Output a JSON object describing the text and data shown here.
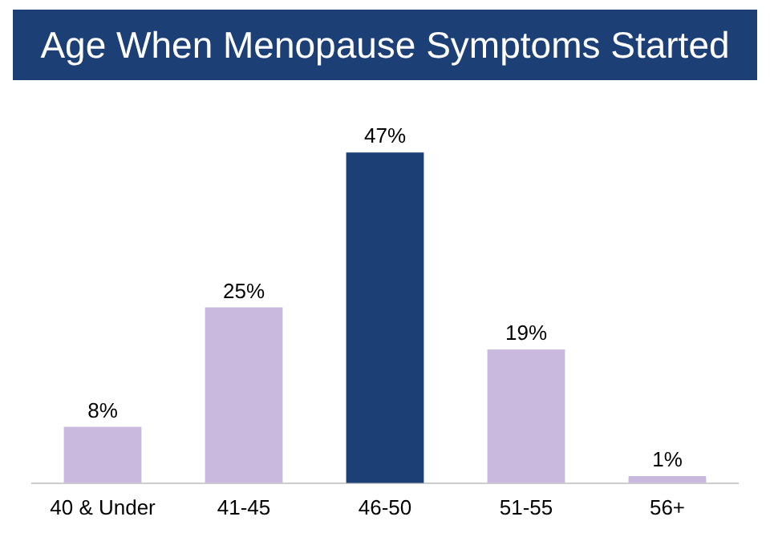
{
  "chart_data": {
    "type": "bar",
    "title": "Age When Menopause Symptoms Started",
    "categories": [
      "40 & Under",
      "41-45",
      "46-50",
      "51-55",
      "56+"
    ],
    "values": [
      8,
      25,
      47,
      19,
      1
    ],
    "colors": [
      "#c9b9df",
      "#c9b9df",
      "#1c3f75",
      "#c9b9df",
      "#c9b9df"
    ],
    "value_labels": [
      "8%",
      "25%",
      "47%",
      "19%",
      "1%"
    ],
    "grid": false,
    "legend": false
  }
}
